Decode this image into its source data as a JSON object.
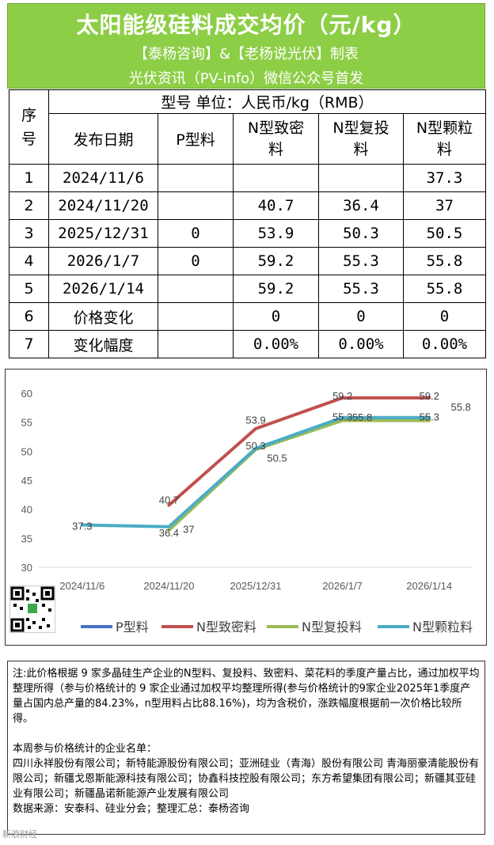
{
  "header": {
    "title": "太阳能级硅料成交均价（元/kg）",
    "subtitle1": "【泰杨咨询】&【老杨说光伏】制表",
    "subtitle2": "光伏资讯（PV-info）微信公众号首发"
  },
  "table": {
    "seq_header": "序号",
    "model_unit": "型号  单位：人民币/kg（RMB）",
    "col_date": "发布日期",
    "col_p": "P型料",
    "col_n_dense": "N型致密料",
    "col_n_recast": "N型复投料",
    "col_n_granular": "N型颗粒料",
    "rows": [
      {
        "seq": "1",
        "date": "2024/11/6",
        "p": "",
        "dense": "",
        "recast": "",
        "granular": "37.3"
      },
      {
        "seq": "2",
        "date": "2024/11/20",
        "p": "",
        "dense": "40.7",
        "recast": "36.4",
        "granular": "37"
      },
      {
        "seq": "3",
        "date": "2025/12/31",
        "p": "0",
        "dense": "53.9",
        "recast": "50.3",
        "granular": "50.5"
      },
      {
        "seq": "4",
        "date": "2026/1/7",
        "p": "0",
        "dense": "59.2",
        "recast": "55.3",
        "granular": "55.8"
      },
      {
        "seq": "5",
        "date": "2026/1/14",
        "p": "",
        "dense": "59.2",
        "recast": "55.3",
        "granular": "55.8"
      },
      {
        "seq": "6",
        "date": "价格变化",
        "p": "",
        "dense": "0",
        "recast": "0",
        "granular": "0"
      },
      {
        "seq": "7",
        "date": "变化幅度",
        "p": "",
        "dense": "0.00%",
        "recast": "0.00%",
        "granular": "0.00%"
      }
    ]
  },
  "chart_data": {
    "type": "line",
    "categories": [
      "2024/11/6",
      "2024/11/20",
      "2025/12/31",
      "2026/1/7",
      "2026/1/14"
    ],
    "ylim": [
      30,
      60
    ],
    "yticks": [
      30,
      35,
      40,
      45,
      50,
      55,
      60
    ],
    "grid": false,
    "legend": "bottom",
    "series": [
      {
        "name": "P型料",
        "color": "#4472c4",
        "values": [
          null,
          null,
          null,
          null,
          null
        ]
      },
      {
        "name": "N型致密料",
        "color": "#c0504d",
        "values": [
          null,
          40.7,
          53.9,
          59.2,
          59.2
        ]
      },
      {
        "name": "N型复投料",
        "color": "#9bbb59",
        "values": [
          null,
          36.4,
          50.3,
          55.3,
          55.3
        ]
      },
      {
        "name": "N型颗粒料",
        "color": "#4bacc6",
        "values": [
          37.3,
          37,
          50.5,
          55.8,
          55.8
        ]
      }
    ],
    "data_labels": [
      {
        "series": 3,
        "index": 0,
        "text": "37.3"
      },
      {
        "series": 1,
        "index": 1,
        "text": "40.7"
      },
      {
        "series": 2,
        "index": 1,
        "text": "36.4"
      },
      {
        "series": 3,
        "index": 1,
        "text": "37"
      },
      {
        "series": 1,
        "index": 2,
        "text": "53.9"
      },
      {
        "series": 2,
        "index": 2,
        "text": "50.3"
      },
      {
        "series": 3,
        "index": 2,
        "text": "50.5"
      },
      {
        "series": 1,
        "index": 3,
        "text": "59.2"
      },
      {
        "series": 2,
        "index": 3,
        "text": "55.3"
      },
      {
        "series": 3,
        "index": 3,
        "text": "55.8"
      },
      {
        "series": 1,
        "index": 4,
        "text": "59.2"
      },
      {
        "series": 2,
        "index": 4,
        "text": "55.3"
      },
      {
        "series": 3,
        "index": 4,
        "text": "55.8"
      }
    ]
  },
  "notes": {
    "note1": "注:此价格根据 9 家多晶硅生产企业的N型料、复投料、致密料、菜花料的季度产量占比，通过加权平均整理所得（参与价格统计的 9 家企业通过加权平均整理所得(参与价格统计的9家企业2025年1季度产量占国内总产量的84.23%，n型用料占比88.16%)，均为含税价，涨跌幅度根据前一次价格比较所得。",
    "list_title": "本周参与价格统计的企业名单：",
    "companies": "四川永祥股份有限公司；新特能源股份有限公司；亚洲硅业（青海）股份有限公司 青海丽豪清能股份有限公司；新疆戈恩斯能源科技有限公司；协鑫科技控股有限公司；东方希望集团有限公司；新疆其亚硅业有限公司；新疆晶诺新能源产业发展有限公司",
    "source": "数据来源：安泰科、硅业分会；整理汇总：泰杨咨询"
  },
  "watermark": "新浪财经"
}
